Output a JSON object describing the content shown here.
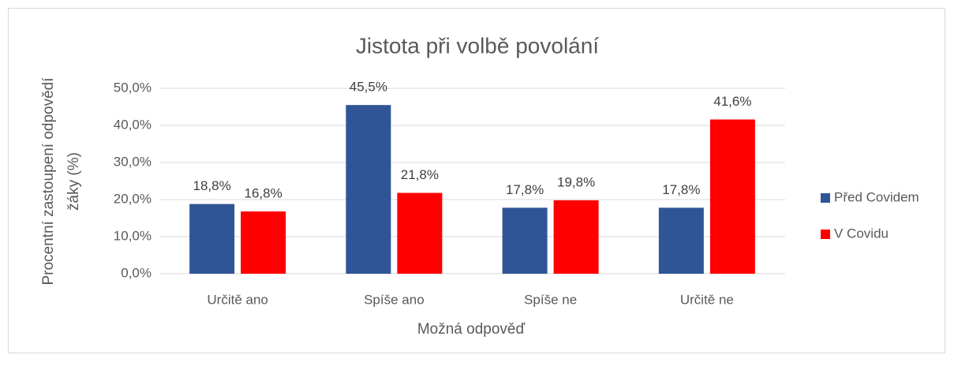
{
  "chart_data": {
    "type": "bar",
    "title": "Jistota při volbě povolání",
    "x_label": "Možná odpověď",
    "y_label": [
      "Procentní zastoupení odpovědí",
      "žáky (%)"
    ],
    "categories": [
      "Určitě ano",
      "Spíše ano",
      "Spíše ne",
      "Určitě ne"
    ],
    "series": [
      {
        "name": "Před Covidem",
        "color": "#2f5597",
        "values": [
          18.8,
          45.5,
          17.8,
          17.8
        ],
        "value_labels": [
          "18,8%",
          "45,5%",
          "17,8%",
          "17,8%"
        ]
      },
      {
        "name": "V Covidu",
        "color": "#ff0000",
        "values": [
          16.8,
          21.8,
          19.8,
          41.6
        ],
        "value_labels": [
          "16,8%",
          "21,8%",
          "19,8%",
          "41,6%"
        ]
      }
    ],
    "ylim": [
      0,
      50
    ],
    "yticks": [
      {
        "value": 0,
        "label": "0,0%"
      },
      {
        "value": 10,
        "label": "10,0%"
      },
      {
        "value": 20,
        "label": "20,0%"
      },
      {
        "value": 30,
        "label": "30,0%"
      },
      {
        "value": 40,
        "label": "40,0%"
      },
      {
        "value": 50,
        "label": "50,0%"
      }
    ],
    "grid": true,
    "legend": "right"
  }
}
